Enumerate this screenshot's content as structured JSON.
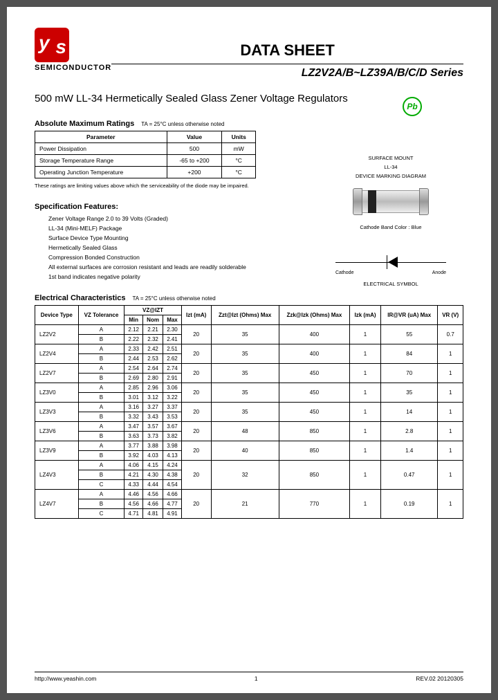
{
  "header": {
    "semiconductor": "SEMICONDUCTOR",
    "datasheet": "DATA SHEET",
    "series": "LZ2V2A/B~LZ39A/B/C/D Series",
    "pb": "Pb"
  },
  "subtitle": "500 mW LL-34 Hermetically Sealed Glass Zener Voltage Regulators",
  "ratings": {
    "title": "Absolute Maximum Ratings",
    "cond": "TA = 25°C unless otherwise noted",
    "cols": [
      "Parameter",
      "Value",
      "Units"
    ],
    "rows": [
      [
        "Power Dissipation",
        "500",
        "mW"
      ],
      [
        "Storage Temperature Range",
        "-65 to +200",
        "°C"
      ],
      [
        "Operating Junction Temperature",
        "+200",
        "°C"
      ]
    ],
    "note": "These ratings are limiting values above which the serviceability of the diode may be impaired."
  },
  "features": {
    "title": "Specification Features:",
    "items": [
      "Zener Voltage Range 2.0 to 39 Volts (Graded)",
      "LL-34 (Mini-MELF) Package",
      "Surface Device Type Mounting",
      "Hermetically Sealed Glass",
      "Compression Bonded Construction",
      "All external surfaces are corrosion resistant and leads are readily solderable",
      "1st band indicates negative polarity"
    ]
  },
  "diagram": {
    "surface": "SURFACE MOUNT",
    "ll34": "LL-34",
    "marking": "DEVICE MARKING DIAGRAM",
    "cathode": "Cathode Band Color : Blue",
    "sym_cathode": "Cathode",
    "sym_anode": "Anode",
    "sym_label": "ELECTRICAL SYMBOL"
  },
  "elec": {
    "title": "Electrical Characteristics",
    "cond": "TA = 25°C unless otherwise noted",
    "h1": [
      "Device Type",
      "VZ Tolerance",
      "VZ@IZT",
      "Izt (mA)",
      "Zzt@Izt (Ohms) Max",
      "Zzk@Izk (Ohms) Max",
      "Izk (mA)",
      "IR@VR (uA) Max",
      "VR (V)"
    ],
    "h2": [
      "Min",
      "Nom",
      "Max"
    ],
    "rows": [
      {
        "dev": "LZ2V2",
        "tol": [
          "A",
          "B"
        ],
        "vz": [
          [
            "2.12",
            "2.21",
            "2.30"
          ],
          [
            "2.22",
            "2.32",
            "2.41"
          ]
        ],
        "izt": "20",
        "zzt": "35",
        "zzk": "400",
        "izk": "1",
        "ir": "55",
        "vr": "0.7"
      },
      {
        "dev": "LZ2V4",
        "tol": [
          "A",
          "B"
        ],
        "vz": [
          [
            "2.33",
            "2.42",
            "2.51"
          ],
          [
            "2.44",
            "2.53",
            "2.62"
          ]
        ],
        "izt": "20",
        "zzt": "35",
        "zzk": "400",
        "izk": "1",
        "ir": "84",
        "vr": "1"
      },
      {
        "dev": "LZ2V7",
        "tol": [
          "A",
          "B"
        ],
        "vz": [
          [
            "2.54",
            "2.64",
            "2.74"
          ],
          [
            "2.69",
            "2.80",
            "2.91"
          ]
        ],
        "izt": "20",
        "zzt": "35",
        "zzk": "450",
        "izk": "1",
        "ir": "70",
        "vr": "1"
      },
      {
        "dev": "LZ3V0",
        "tol": [
          "A",
          "B"
        ],
        "vz": [
          [
            "2.85",
            "2.96",
            "3.06"
          ],
          [
            "3.01",
            "3.12",
            "3.22"
          ]
        ],
        "izt": "20",
        "zzt": "35",
        "zzk": "450",
        "izk": "1",
        "ir": "35",
        "vr": "1"
      },
      {
        "dev": "LZ3V3",
        "tol": [
          "A",
          "B"
        ],
        "vz": [
          [
            "3.16",
            "3.27",
            "3.37"
          ],
          [
            "3.32",
            "3.43",
            "3.53"
          ]
        ],
        "izt": "20",
        "zzt": "35",
        "zzk": "450",
        "izk": "1",
        "ir": "14",
        "vr": "1"
      },
      {
        "dev": "LZ3V6",
        "tol": [
          "A",
          "B"
        ],
        "vz": [
          [
            "3.47",
            "3.57",
            "3.67"
          ],
          [
            "3.63",
            "3.73",
            "3.82"
          ]
        ],
        "izt": "20",
        "zzt": "48",
        "zzk": "850",
        "izk": "1",
        "ir": "2.8",
        "vr": "1"
      },
      {
        "dev": "LZ3V9",
        "tol": [
          "A",
          "B"
        ],
        "vz": [
          [
            "3.77",
            "3.88",
            "3.98"
          ],
          [
            "3.92",
            "4.03",
            "4.13"
          ]
        ],
        "izt": "20",
        "zzt": "40",
        "zzk": "850",
        "izk": "1",
        "ir": "1.4",
        "vr": "1"
      },
      {
        "dev": "LZ4V3",
        "tol": [
          "A",
          "B",
          "C"
        ],
        "vz": [
          [
            "4.06",
            "4.15",
            "4.24"
          ],
          [
            "4.21",
            "4.30",
            "4.38"
          ],
          [
            "4.33",
            "4.44",
            "4.54"
          ]
        ],
        "izt": "20",
        "zzt": "32",
        "zzk": "850",
        "izk": "1",
        "ir": "0.47",
        "vr": "1"
      },
      {
        "dev": "LZ4V7",
        "tol": [
          "A",
          "B",
          "C"
        ],
        "vz": [
          [
            "4.46",
            "4.56",
            "4.66"
          ],
          [
            "4.56",
            "4.66",
            "4.77"
          ],
          [
            "4.71",
            "4.81",
            "4.91"
          ]
        ],
        "izt": "20",
        "zzt": "21",
        "zzk": "770",
        "izk": "1",
        "ir": "0.19",
        "vr": "1"
      }
    ]
  },
  "footer": {
    "url": "http://www.yeashin.com",
    "page": "1",
    "rev": "REV.02 20120305"
  }
}
